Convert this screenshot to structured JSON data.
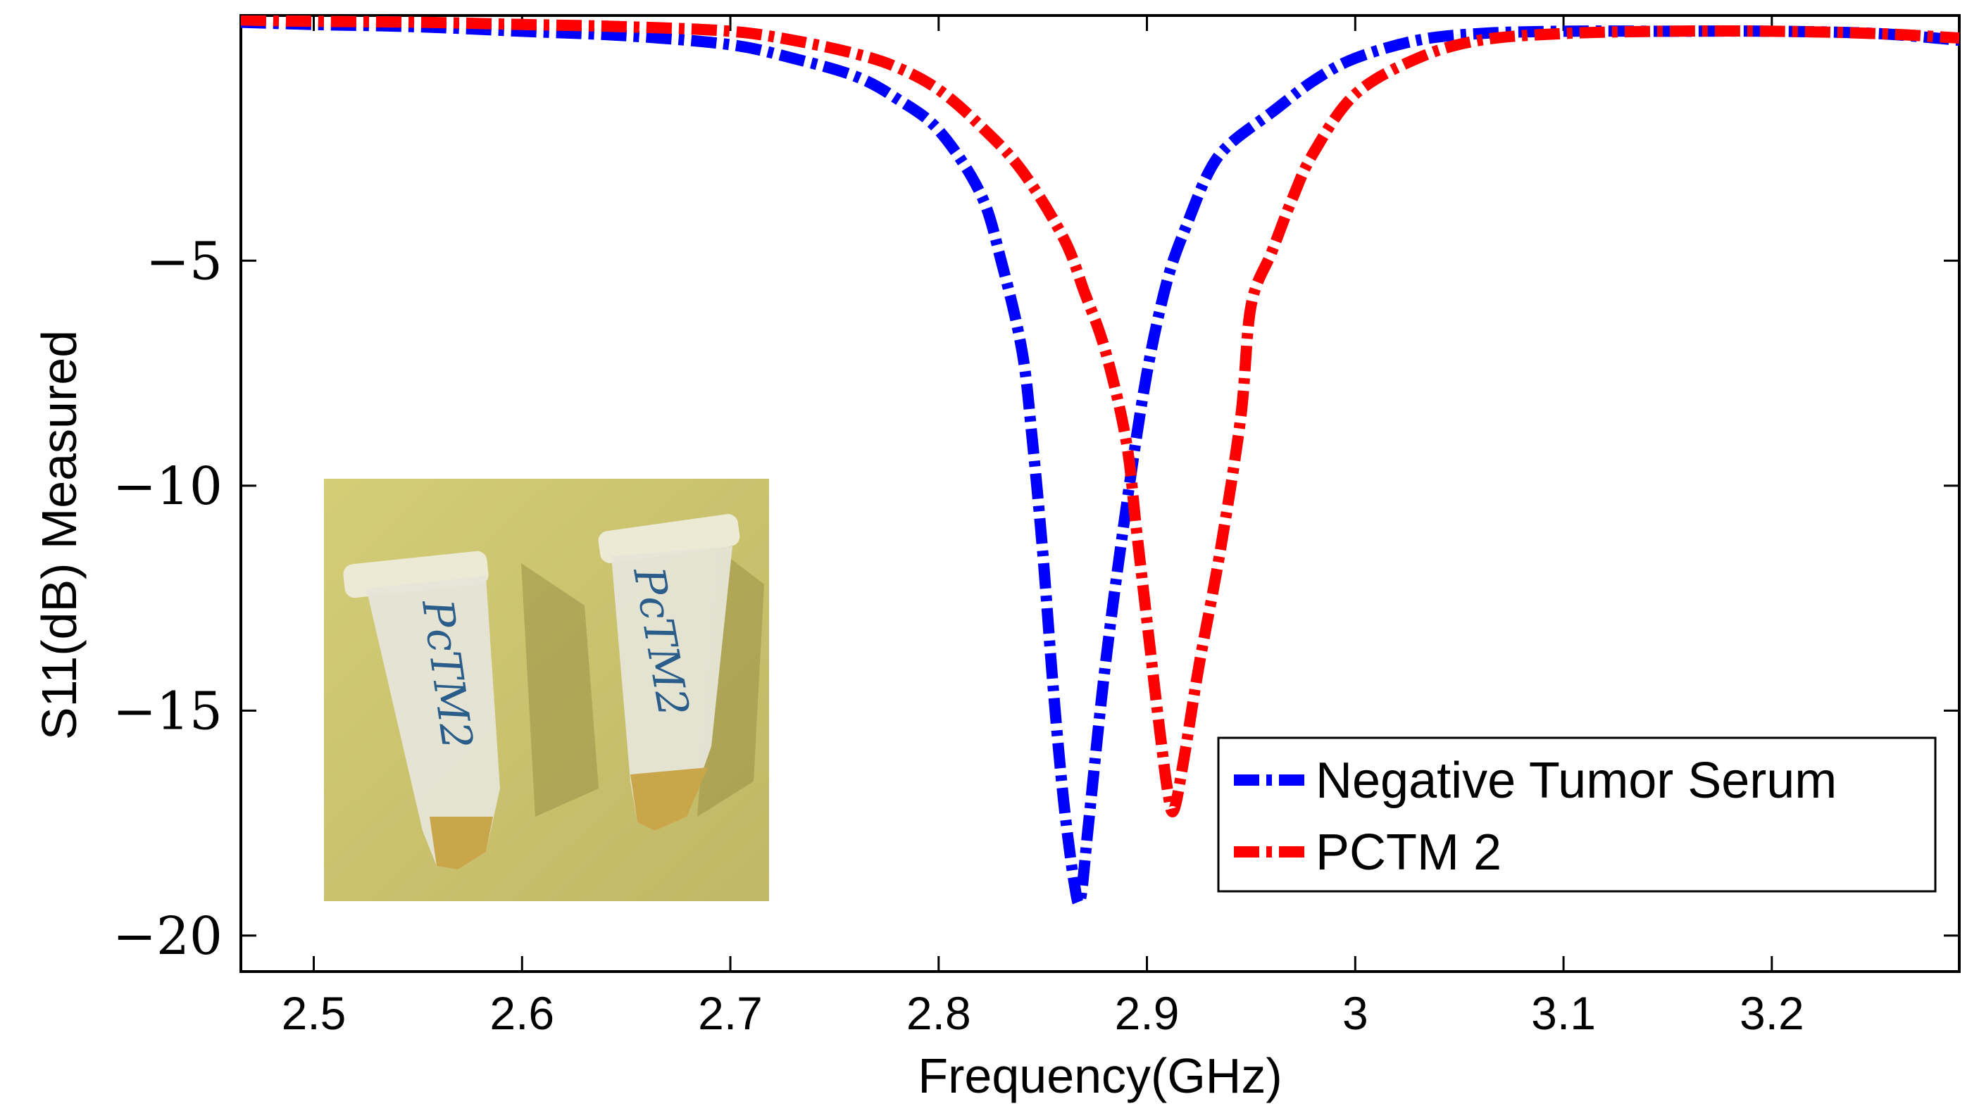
{
  "chart_data": {
    "type": "line",
    "title": "",
    "xlabel": "Frequency(GHz)",
    "ylabel": "S11(dB)  Measured",
    "xlim": [
      2.465,
      3.29
    ],
    "ylim": [
      -20.8,
      0.45
    ],
    "x_ticks": [
      2.5,
      2.6,
      2.7,
      2.8,
      2.9,
      3.0,
      3.1,
      3.2
    ],
    "x_tick_labels": [
      "2.5",
      "2.6",
      "2.7",
      "2.8",
      "2.9",
      "3",
      "3.1",
      "3.2"
    ],
    "y_ticks": [
      -5,
      -10,
      -15,
      -20
    ],
    "y_tick_labels": [
      "−5",
      "−10",
      "−15",
      "−20"
    ],
    "grid": false,
    "legend_position": "bottom-right",
    "series": [
      {
        "name": "Negative Tumor Serum",
        "color": "#0000ff",
        "style": "dash-dot",
        "x": [
          2.465,
          2.5,
          2.55,
          2.6,
          2.65,
          2.7,
          2.73,
          2.76,
          2.78,
          2.8,
          2.82,
          2.83,
          2.84,
          2.845,
          2.85,
          2.855,
          2.86,
          2.865,
          2.868,
          2.872,
          2.88,
          2.89,
          2.9,
          2.91,
          2.92,
          2.93,
          2.94,
          2.96,
          2.98,
          3.0,
          3.03,
          3.06,
          3.1,
          3.15,
          3.2,
          3.25,
          3.29
        ],
        "values": [
          0.3,
          0.25,
          0.2,
          0.1,
          0.0,
          -0.2,
          -0.5,
          -0.9,
          -1.4,
          -2.1,
          -3.5,
          -5.0,
          -7.0,
          -9.0,
          -11.5,
          -14.5,
          -17.0,
          -18.8,
          -19.2,
          -17.5,
          -14.0,
          -10.5,
          -7.5,
          -5.4,
          -4.1,
          -3.0,
          -2.4,
          -1.7,
          -1.0,
          -0.5,
          -0.1,
          0.05,
          0.1,
          0.1,
          0.1,
          0.05,
          -0.1
        ]
      },
      {
        "name": "PCTM 2",
        "color": "#ff0000",
        "style": "dash-dot",
        "x": [
          2.465,
          2.5,
          2.55,
          2.6,
          2.65,
          2.7,
          2.73,
          2.76,
          2.78,
          2.8,
          2.82,
          2.84,
          2.86,
          2.87,
          2.88,
          2.89,
          2.895,
          2.9,
          2.905,
          2.91,
          2.913,
          2.918,
          2.925,
          2.935,
          2.945,
          2.95,
          2.96,
          2.97,
          2.98,
          3.0,
          3.03,
          3.06,
          3.1,
          3.15,
          3.2,
          3.25,
          3.29
        ],
        "values": [
          0.35,
          0.32,
          0.3,
          0.25,
          0.2,
          0.1,
          -0.1,
          -0.4,
          -0.7,
          -1.2,
          -2.0,
          -3.0,
          -4.5,
          -5.7,
          -7.0,
          -9.0,
          -11.0,
          -13.0,
          -15.0,
          -16.8,
          -17.2,
          -16.0,
          -14.0,
          -11.5,
          -8.5,
          -6.0,
          -4.8,
          -3.6,
          -2.6,
          -1.3,
          -0.5,
          -0.1,
          0.05,
          0.1,
          0.1,
          0.05,
          -0.05
        ]
      }
    ],
    "inset_photo": {
      "tube_labels": [
        "PcTM2",
        "PcTM2"
      ]
    }
  }
}
